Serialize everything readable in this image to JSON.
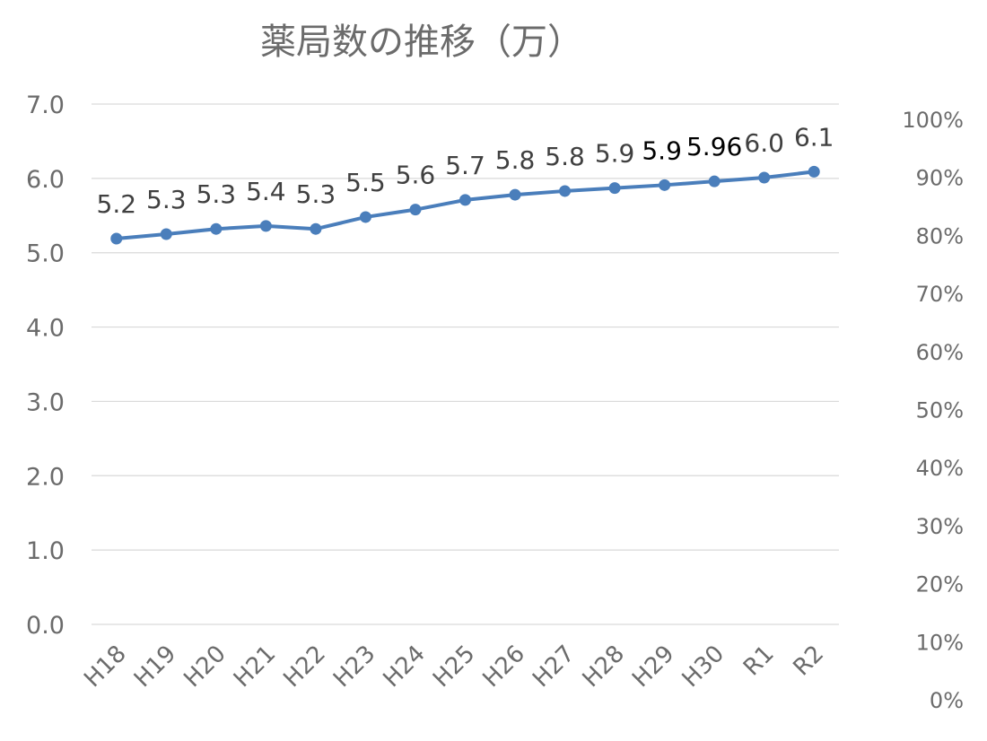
{
  "chart_data": {
    "type": "line",
    "title": "薬局数の推移（万）",
    "categories": [
      "H18",
      "H19",
      "H20",
      "H21",
      "H22",
      "H23",
      "H24",
      "H25",
      "H26",
      "H27",
      "H28",
      "H29",
      "H30",
      "R1",
      "R2"
    ],
    "series": [
      {
        "values": [
          5.19,
          5.25,
          5.32,
          5.36,
          5.32,
          5.48,
          5.58,
          5.71,
          5.78,
          5.83,
          5.87,
          5.91,
          5.96,
          6.01,
          6.09
        ],
        "labels": [
          "5.2",
          "5.3",
          "5.3",
          "5.4",
          "5.3",
          "5.5",
          "5.6",
          "5.7",
          "5.8",
          "5.8",
          "5.9",
          "5.9",
          "5.96",
          "6.0",
          "6.1"
        ],
        "color": "#4a7ebb"
      }
    ],
    "y_axis": {
      "min": 0,
      "max": 7,
      "ticks": [
        "0.0",
        "1.0",
        "2.0",
        "3.0",
        "4.0",
        "5.0",
        "6.0",
        "7.0"
      ]
    },
    "y2_axis": {
      "min": 0,
      "max": 100,
      "ticks": [
        "0%",
        "10%",
        "20%",
        "30%",
        "40%",
        "50%",
        "60%",
        "70%",
        "80%",
        "90%",
        "100%"
      ]
    },
    "grid": true,
    "legend": "none"
  }
}
